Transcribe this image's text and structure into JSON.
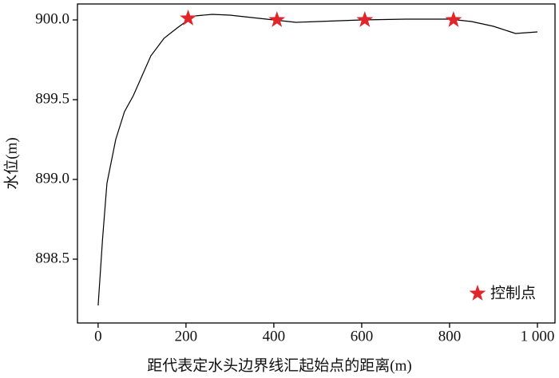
{
  "chart_data": {
    "type": "line",
    "xlabel": "距代表定水头边界线汇起始点的距离(m)",
    "ylabel": "水位(m)",
    "x": [
      0,
      10,
      20,
      40,
      60,
      80,
      100,
      120,
      150,
      180,
      200,
      220,
      260,
      300,
      350,
      400,
      450,
      500,
      600,
      700,
      800,
      850,
      900,
      950,
      1000
    ],
    "values": [
      898.21,
      898.625,
      898.975,
      899.25,
      899.425,
      899.525,
      899.65,
      899.775,
      899.885,
      899.95,
      899.99,
      900.025,
      900.035,
      900.03,
      900.015,
      900.0,
      899.985,
      899.99,
      900.0,
      900.005,
      900.005,
      899.99,
      899.96,
      899.915,
      899.925
    ],
    "color": "#000000",
    "markers": {
      "name": "控制点",
      "color": "#e0262b",
      "x": [
        205,
        407,
        607,
        809
      ],
      "values": [
        900.01,
        900.0,
        900.0,
        900.0
      ]
    },
    "legend": "lower right",
    "xlim": [
      -47,
      1040
    ],
    "ylim": [
      898.1,
      900.1
    ],
    "xticks": [
      0,
      200,
      400,
      600,
      800,
      {
        "value": 1000,
        "label": "1 000"
      }
    ],
    "yticks": [
      {
        "value": 898.5,
        "label": "898.5"
      },
      {
        "value": 899.0,
        "label": "899.0"
      },
      {
        "value": 899.5,
        "label": "899.5"
      },
      {
        "value": 900.0,
        "label": "900.0"
      }
    ]
  }
}
